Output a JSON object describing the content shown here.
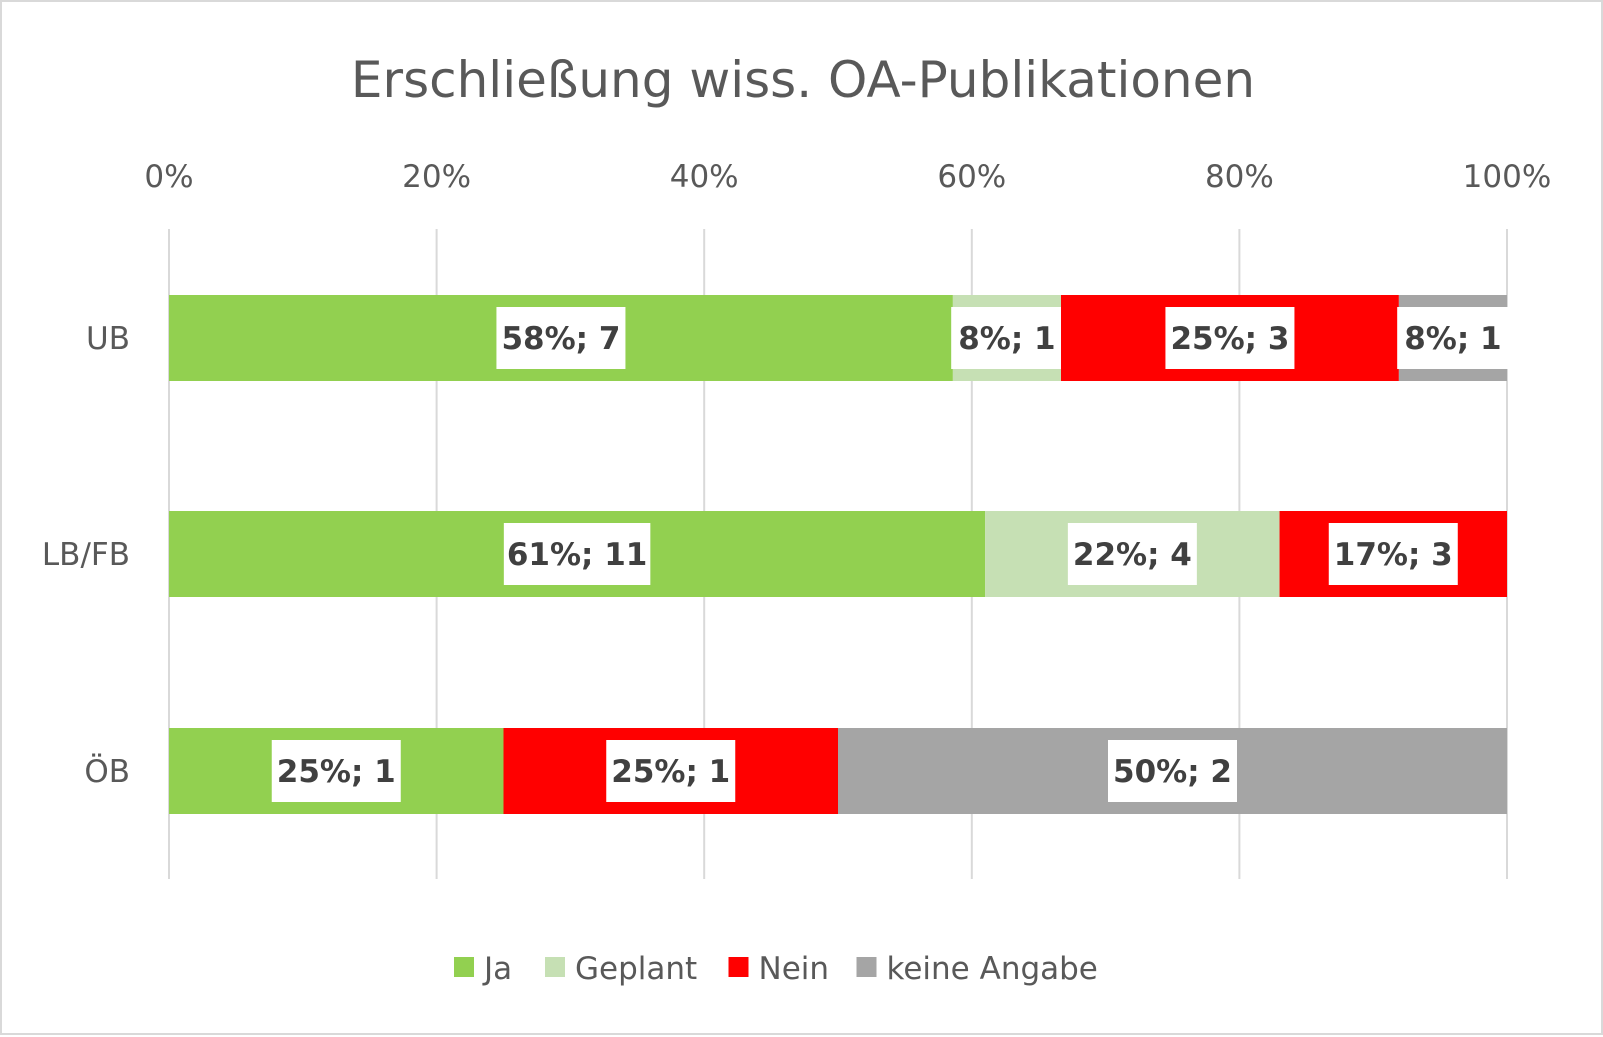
{
  "chart_data": {
    "type": "bar",
    "orientation": "horizontal",
    "stacked": "percent",
    "title": "Erschließung wiss. OA-Publikationen",
    "categories": [
      "UB",
      "LB/FB",
      "ÖB"
    ],
    "x_ticks": [
      "0%",
      "20%",
      "40%",
      "60%",
      "80%",
      "100%"
    ],
    "xlim": [
      0,
      100
    ],
    "grid": true,
    "legend_position": "bottom",
    "series": [
      {
        "name": "Ja",
        "color": "#92D050",
        "percent": [
          58,
          61,
          25
        ],
        "counts": [
          7,
          11,
          1
        ],
        "labels": [
          "58%; 7",
          "61%; 11",
          "25%; 1"
        ]
      },
      {
        "name": "Geplant",
        "color": "#C6E0B4",
        "percent": [
          8,
          22,
          0
        ],
        "counts": [
          1,
          4,
          0
        ],
        "labels": [
          "8%; 1",
          "22%; 4",
          ""
        ]
      },
      {
        "name": "Nein",
        "color": "#FF0000",
        "percent": [
          25,
          17,
          25
        ],
        "counts": [
          3,
          3,
          1
        ],
        "labels": [
          "25%; 3",
          "17%; 3",
          "25%; 1"
        ]
      },
      {
        "name": "keine Angabe",
        "color": "#A5A5A5",
        "percent": [
          8,
          0,
          50
        ],
        "counts": [
          1,
          0,
          2
        ],
        "labels": [
          "8%; 1",
          "",
          "50%; 2"
        ]
      }
    ]
  }
}
